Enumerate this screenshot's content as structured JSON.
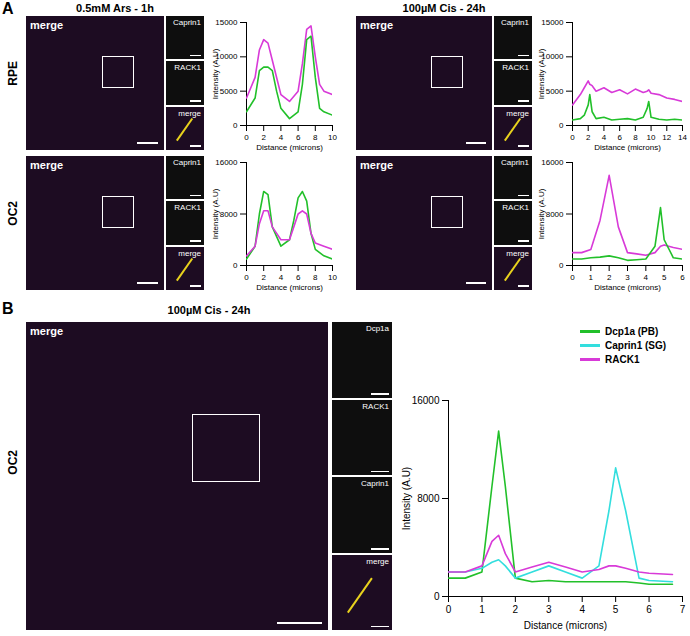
{
  "figure": {
    "panels": [
      {
        "label": "A",
        "rows": [
          "RPE",
          "OC2"
        ],
        "conditions": [
          "0.5mM Ars - 1h",
          "100µM Cis - 24h"
        ],
        "image_label": "merge",
        "insets": [
          "Caprin1",
          "RACK1",
          "merge"
        ]
      },
      {
        "label": "B",
        "rows": [
          "OC2"
        ],
        "conditions": [
          "100µM Cis - 24h"
        ],
        "image_label": "merge",
        "insets": [
          "Dcp1a",
          "RACK1",
          "Caprin1",
          "merge"
        ]
      }
    ]
  },
  "chart_data": [
    {
      "type": "line",
      "xlabel": "Distance (microns)",
      "ylabel": "Intensity (A.U)",
      "xlim": [
        0,
        10
      ],
      "xticks": [
        0,
        2,
        4,
        6,
        8,
        10
      ],
      "ylim": [
        0,
        15000
      ],
      "yticks": [
        0,
        5000,
        10000,
        15000
      ],
      "x": [
        0,
        1,
        1.5,
        2,
        2.5,
        3,
        3.5,
        4,
        5,
        6,
        6.5,
        7,
        7.5,
        8,
        8.5,
        9,
        10
      ],
      "series": [
        {
          "color": "#d83ad8",
          "values": [
            4000,
            7000,
            11000,
            12500,
            12000,
            9500,
            7000,
            4500,
            3500,
            5000,
            9000,
            14000,
            14500,
            10000,
            6000,
            5000,
            4500
          ]
        },
        {
          "color": "#22c02a",
          "values": [
            2000,
            4000,
            8000,
            8500,
            8500,
            8000,
            5000,
            2500,
            1000,
            2000,
            6000,
            12500,
            13000,
            7000,
            2500,
            2000,
            1500
          ]
        }
      ]
    },
    {
      "type": "line",
      "xlabel": "Distance (microns)",
      "ylabel": "Intensity (A.U)",
      "xlim": [
        0,
        14
      ],
      "xticks": [
        0,
        2,
        4,
        6,
        8,
        10,
        12,
        14
      ],
      "ylim": [
        0,
        15000
      ],
      "yticks": [
        0,
        5000,
        10000,
        15000
      ],
      "x": [
        0,
        1,
        1.5,
        2,
        2.2,
        2.5,
        3,
        4,
        5,
        6,
        7,
        8,
        9,
        9.5,
        9.7,
        10,
        11,
        12,
        13,
        14
      ],
      "series": [
        {
          "color": "#d83ad8",
          "values": [
            3000,
            4500,
            5500,
            6500,
            6000,
            5800,
            5000,
            5500,
            4800,
            5200,
            4600,
            5300,
            4800,
            5000,
            5200,
            4700,
            4500,
            4000,
            3800,
            3500
          ]
        },
        {
          "color": "#22c02a",
          "values": [
            800,
            1000,
            1500,
            3000,
            4500,
            2000,
            1000,
            1200,
            800,
            900,
            1000,
            800,
            1200,
            2500,
            3500,
            1200,
            900,
            800,
            900,
            800
          ]
        }
      ]
    },
    {
      "type": "line",
      "xlabel": "Distance (microns)",
      "ylabel": "Intensity (A.U)",
      "xlim": [
        0,
        10
      ],
      "xticks": [
        0,
        2,
        4,
        6,
        8,
        10
      ],
      "ylim": [
        0,
        16000
      ],
      "yticks": [
        0,
        8000,
        16000
      ],
      "x": [
        0,
        1,
        1.5,
        2,
        2.5,
        3,
        4,
        5,
        5.5,
        6,
        6.5,
        7,
        7.5,
        8,
        9,
        10
      ],
      "series": [
        {
          "color": "#22c02a",
          "values": [
            1000,
            3000,
            8000,
            11500,
            11000,
            6000,
            3000,
            4000,
            7000,
            10500,
            11500,
            10000,
            5000,
            2500,
            1500,
            1000
          ]
        },
        {
          "color": "#d83ad8",
          "values": [
            1500,
            3000,
            6500,
            8500,
            8500,
            6000,
            4000,
            4000,
            6000,
            8000,
            8500,
            8000,
            5000,
            3500,
            3000,
            2500
          ]
        }
      ]
    },
    {
      "type": "line",
      "xlabel": "Distance (microns)",
      "ylabel": "Intensity (A.U)",
      "xlim": [
        0,
        6
      ],
      "xticks": [
        0,
        1,
        2,
        3,
        4,
        5,
        6
      ],
      "ylim": [
        0,
        16000
      ],
      "yticks": [
        0,
        8000,
        16000
      ],
      "x": [
        0,
        0.5,
        1,
        1.5,
        2,
        2.5,
        3,
        3.5,
        4,
        4.5,
        4.8,
        5,
        5.5,
        6
      ],
      "series": [
        {
          "color": "#d83ad8",
          "values": [
            2000,
            2000,
            2500,
            7000,
            14000,
            6000,
            2000,
            1800,
            1600,
            2000,
            3000,
            3200,
            2800,
            2500
          ]
        },
        {
          "color": "#22c02a",
          "values": [
            1000,
            1000,
            1200,
            1300,
            1500,
            1200,
            800,
            900,
            1000,
            3000,
            9000,
            4000,
            1200,
            1000
          ]
        }
      ]
    },
    {
      "type": "line",
      "xlabel": "Distance (microns)",
      "ylabel": "Intensity (A.U)",
      "legend": "upper right",
      "xlim": [
        0,
        7
      ],
      "xticks": [
        0,
        1,
        2,
        3,
        4,
        5,
        6,
        7
      ],
      "ylim": [
        0,
        16000
      ],
      "yticks": [
        0,
        8000,
        16000
      ],
      "x": [
        0,
        0.5,
        1,
        1.3,
        1.5,
        1.7,
        2,
        2.5,
        3,
        3.5,
        4,
        4.5,
        4.8,
        5,
        5.3,
        5.7,
        6,
        6.7
      ],
      "series": [
        {
          "name": "Dcp1a (PB)",
          "color": "#22c02a",
          "values": [
            1500,
            1500,
            2000,
            9000,
            13500,
            9000,
            1500,
            1200,
            1300,
            1200,
            1200,
            1200,
            1200,
            1200,
            1200,
            1100,
            1000,
            1000
          ]
        },
        {
          "name": "Caprin1 (SG)",
          "color": "#33dede",
          "values": [
            2000,
            2000,
            2300,
            2800,
            3000,
            2500,
            1500,
            2000,
            2500,
            2000,
            1500,
            2500,
            7000,
            10500,
            7000,
            1500,
            1300,
            1200
          ]
        },
        {
          "name": "RACK1",
          "color": "#d83ad8",
          "values": [
            2000,
            2000,
            2500,
            4500,
            5000,
            3500,
            2000,
            2400,
            2800,
            2400,
            2000,
            2200,
            2500,
            2500,
            2300,
            2000,
            1900,
            1800
          ]
        }
      ]
    }
  ]
}
